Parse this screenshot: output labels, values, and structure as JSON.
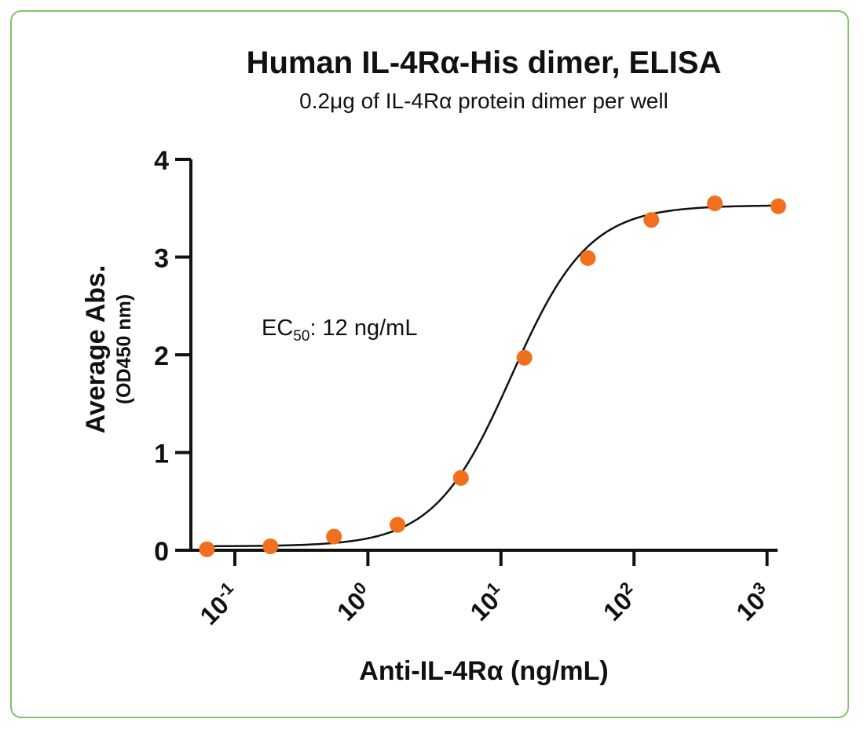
{
  "chart_data": {
    "type": "scatter",
    "title": "Human IL-4Rα-His dimer, ELISA",
    "subtitle": "0.2μg of IL-4Rα protein dimer per well",
    "xlabel": "Anti-IL-4Rα (ng/mL)",
    "ylabel": "Average Abs.",
    "ylabel_sub": "(OD450 nm)",
    "x_scale": "log10",
    "xlim": [
      0.05,
      1200
    ],
    "ylim": [
      0,
      4
    ],
    "x_ticks": [
      {
        "base": "10",
        "exp": "-1",
        "value": 0.1
      },
      {
        "base": "10",
        "exp": "0",
        "value": 1
      },
      {
        "base": "10",
        "exp": "1",
        "value": 10
      },
      {
        "base": "10",
        "exp": "2",
        "value": 100
      },
      {
        "base": "10",
        "exp": "3",
        "value": 1000
      }
    ],
    "y_ticks": [
      "0",
      "1",
      "2",
      "3",
      "4"
    ],
    "annotation": {
      "prefix": "EC",
      "sub": "50",
      "suffix": ": 12 ng/mL"
    },
    "ec50": 12,
    "bottom": 0.04,
    "top": 3.53,
    "hill_slope": 1.5,
    "series": [
      {
        "x": [
          0.0617,
          0.185,
          0.556,
          1.67,
          5.0,
          15.0,
          45.0,
          135.0,
          405.0,
          1215.0
        ],
        "y": [
          0.01,
          0.04,
          0.14,
          0.26,
          0.74,
          1.97,
          2.99,
          3.38,
          3.55,
          3.52
        ]
      }
    ],
    "colors": {
      "points": "#f26f1d",
      "curve": "#111111",
      "axis": "#111111",
      "border": "#7dc36a"
    }
  }
}
